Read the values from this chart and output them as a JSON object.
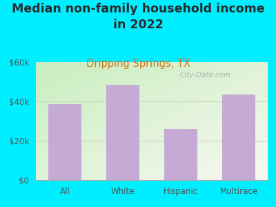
{
  "title": "Median non-family household income\nin 2022",
  "subtitle": "Dripping Springs, TX",
  "categories": [
    "All",
    "White",
    "Hispanic",
    "Multirace"
  ],
  "values": [
    38500,
    48500,
    26000,
    43500
  ],
  "bar_color": "#c4aad4",
  "background_outer": "#00eeff",
  "title_color": "#2a2a2a",
  "subtitle_color": "#cc7722",
  "tick_label_color": "#555555",
  "ylim": [
    0,
    60000
  ],
  "yticks": [
    0,
    20000,
    40000,
    60000
  ],
  "ytick_labels": [
    "$0",
    "$20k",
    "$40k",
    "$60k"
  ],
  "watermark": "City-Data.com",
  "title_fontsize": 12.5,
  "subtitle_fontsize": 10.5,
  "grid_color": "#ddddcc",
  "grad_top_left": "#c8e8c0",
  "grad_bottom_right": "#f0f0e8"
}
